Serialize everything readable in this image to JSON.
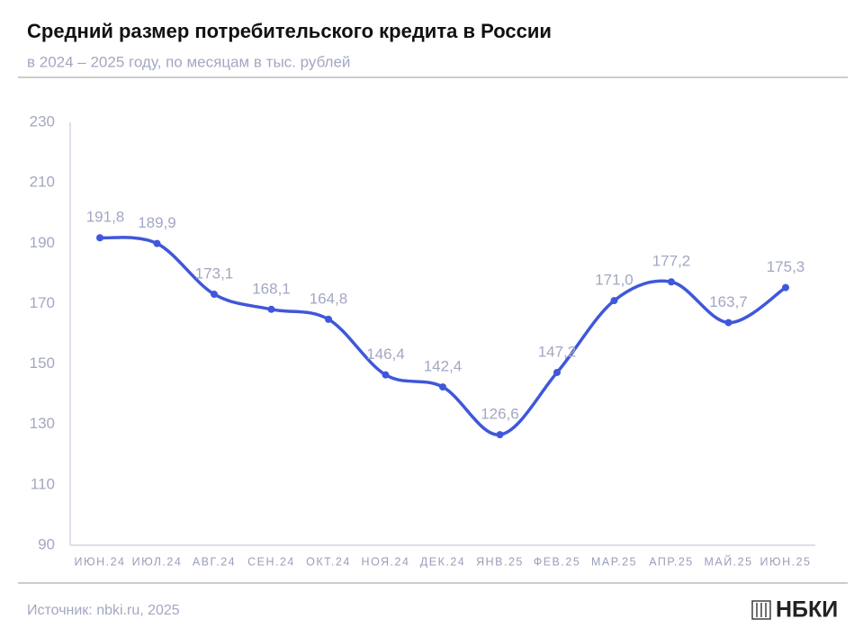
{
  "chart_data": {
    "type": "line",
    "title": "Средний размер потребительского кредита в России",
    "subtitle": "в 2024 – 2025 году, по месяцам в тыс. рублей",
    "categories": [
      "ИЮН.24",
      "ИЮЛ.24",
      "АВГ.24",
      "СЕН.24",
      "ОКТ.24",
      "НОЯ.24",
      "ДЕК.24",
      "ЯНВ.25",
      "ФЕВ.25",
      "МАР.25",
      "АПР.25",
      "МАЙ.25",
      "ИЮН.25"
    ],
    "values": [
      191.8,
      189.9,
      173.1,
      168.1,
      164.8,
      146.4,
      142.4,
      126.6,
      147.2,
      171.0,
      177.2,
      163.7,
      175.3
    ],
    "value_labels": [
      "191,8",
      "189,9",
      "173,1",
      "168,1",
      "164,8",
      "146,4",
      "142,4",
      "126,6",
      "147,2",
      "171,0",
      "177,2",
      "163,7",
      "175,3"
    ],
    "color": "#3f57da",
    "ylim": [
      90,
      230
    ],
    "yticks": [
      90,
      110,
      130,
      150,
      170,
      190,
      210,
      230
    ],
    "grid": false,
    "source": "Источник: nbki.ru, 2025",
    "logo": "НБКИ"
  }
}
